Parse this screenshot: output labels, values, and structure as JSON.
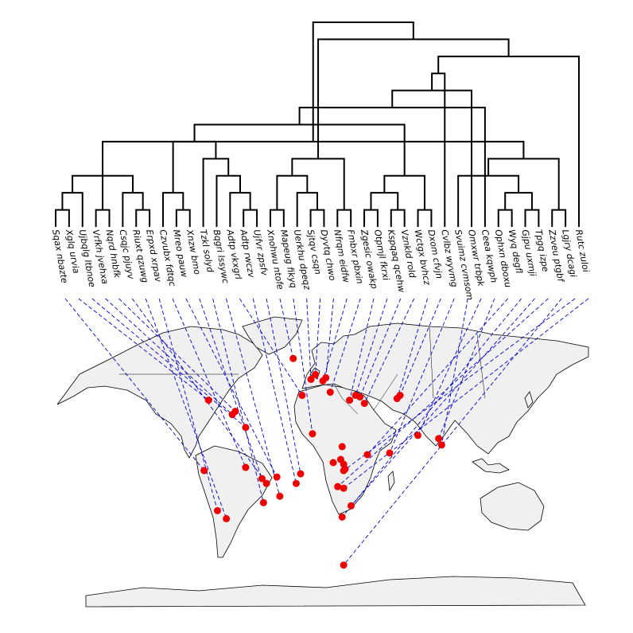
{
  "chart_data": {
    "type": "tanglegram",
    "title": "",
    "xlabel": "",
    "ylabel": "",
    "tips": [
      {
        "label": "Sqax nbazte"
      },
      {
        "label": "Xglq urvia"
      },
      {
        "label": "Ujbqlg ltbnoe"
      },
      {
        "label": "Vrfkh jvehxa"
      },
      {
        "label": "Nqrd hnbfk"
      },
      {
        "label": "Csqjc pjuyv"
      },
      {
        "label": "Riuxt qzuwg"
      },
      {
        "label": "Erpxd xrpav"
      },
      {
        "label": "Czvubx fdtqc"
      },
      {
        "label": "Mreo pauw"
      },
      {
        "label": "Xnzw bmo"
      },
      {
        "label": "Tzkl solyd"
      },
      {
        "label": "Bqgri lssywc"
      },
      {
        "label": "Adtp vkxgrl"
      },
      {
        "label": "Adtp rwczv"
      },
      {
        "label": "Ujfvr zpsfv"
      },
      {
        "label": "Xnohwu ntofe"
      },
      {
        "label": "Mapeug fikyq"
      },
      {
        "label": "Uerkhu dpeqz"
      },
      {
        "label": "Sjtqv csqn"
      },
      {
        "label": "Dyvtq chwo"
      },
      {
        "label": "Nfrqm eidfw"
      },
      {
        "label": "Fmbxr pbxin"
      },
      {
        "label": "Zgesic owakp"
      },
      {
        "label": "Otpmjl fkrxi"
      },
      {
        "label": "Kspqaq qcehw"
      },
      {
        "label": "Vznkld rold"
      },
      {
        "label": "Wctgx bvhcz"
      },
      {
        "label": "Dxom cfvjn"
      },
      {
        "label": "Cvlbz wyvmg"
      },
      {
        "label": "Svuimz cvmsom"
      },
      {
        "label": "Omxwr trbpk"
      },
      {
        "label": "Ceea kqwph"
      },
      {
        "label": "Ophxn dboxu"
      },
      {
        "label": "Wyq degfl"
      },
      {
        "label": "Gjpu uxmji"
      },
      {
        "label": "Tpgq izpe"
      },
      {
        "label": "Zzveu ptgbf"
      },
      {
        "label": "Lgjry dcagi"
      },
      {
        "label": "Rutc zuloi"
      }
    ],
    "points": [
      {
        "lon": -77,
        "lat": 39
      },
      {
        "lon": -38,
        "lat": -13
      },
      {
        "lon": -61,
        "lat": 30
      },
      {
        "lon": -59,
        "lat": 32
      },
      {
        "lon": -80,
        "lat": -5
      },
      {
        "lon": -52,
        "lat": 22
      },
      {
        "lon": -52,
        "lat": -3
      },
      {
        "lon": -65,
        "lat": -35
      },
      {
        "lon": -71,
        "lat": -30
      },
      {
        "lon": -31,
        "lat": -9
      },
      {
        "lon": -41,
        "lat": -10
      },
      {
        "lon": -40,
        "lat": -25
      },
      {
        "lon": -29,
        "lat": -21
      },
      {
        "lon": -20,
        "lat": 65
      },
      {
        "lon": -18,
        "lat": -13
      },
      {
        "lon": -15,
        "lat": -7
      },
      {
        "lon": -7,
        "lat": 18
      },
      {
        "lon": -14,
        "lat": 42
      },
      {
        "lon": -8,
        "lat": 52
      },
      {
        "lon": -5,
        "lat": 55
      },
      {
        "lon": 2,
        "lat": 53
      },
      {
        "lon": 0,
        "lat": 51
      },
      {
        "lon": 5,
        "lat": 44
      },
      {
        "lon": 7,
        "lat": 0
      },
      {
        "lon": 12,
        "lat": 2
      },
      {
        "lon": 13,
        "lat": 10
      },
      {
        "lon": 14,
        "lat": -5
      },
      {
        "lon": 14,
        "lat": -16
      },
      {
        "lon": 14,
        "lat": -1
      },
      {
        "lon": 15,
        "lat": -4
      },
      {
        "lon": 10,
        "lat": -15
      },
      {
        "lon": 13,
        "lat": -34
      },
      {
        "lon": 19,
        "lat": -27
      },
      {
        "lon": 18,
        "lat": 39
      },
      {
        "lon": 14,
        "lat": -64
      },
      {
        "lon": 22,
        "lat": 42
      },
      {
        "lon": 25,
        "lat": 41
      },
      {
        "lon": 28,
        "lat": 37
      },
      {
        "lon": 30,
        "lat": 5
      },
      {
        "lon": 50,
        "lat": 40
      },
      {
        "lon": 52,
        "lat": 42
      },
      {
        "lon": 45,
        "lat": 6
      },
      {
        "lon": 64,
        "lat": 17
      },
      {
        "lon": 80,
        "lat": 11
      },
      {
        "lon": 78,
        "lat": 15
      }
    ],
    "links": [
      [
        0,
        4
      ],
      [
        1,
        0
      ],
      [
        2,
        5
      ],
      [
        3,
        2
      ],
      [
        4,
        3
      ],
      [
        5,
        1
      ],
      [
        6,
        7
      ],
      [
        7,
        8
      ],
      [
        8,
        6
      ],
      [
        9,
        9
      ],
      [
        10,
        10
      ],
      [
        11,
        11
      ],
      [
        12,
        12
      ],
      [
        13,
        17
      ],
      [
        14,
        14
      ],
      [
        15,
        15
      ],
      [
        16,
        13
      ],
      [
        17,
        16
      ],
      [
        18,
        18
      ],
      [
        19,
        19
      ],
      [
        20,
        20
      ],
      [
        21,
        21
      ],
      [
        22,
        22
      ],
      [
        23,
        33
      ],
      [
        24,
        35
      ],
      [
        25,
        36
      ],
      [
        26,
        37
      ],
      [
        27,
        39
      ],
      [
        28,
        40
      ],
      [
        29,
        41
      ],
      [
        30,
        43
      ],
      [
        31,
        42
      ],
      [
        32,
        44
      ],
      [
        33,
        38
      ],
      [
        34,
        31
      ],
      [
        35,
        32
      ],
      [
        36,
        30
      ],
      [
        37,
        34
      ],
      [
        38,
        26
      ],
      [
        39,
        27
      ]
    ],
    "tree_merges": [
      [
        0,
        1
      ],
      [
        3,
        4
      ],
      [
        2,
        "a"
      ],
      [
        6,
        7
      ],
      [
        5,
        "d"
      ],
      [
        "c",
        "e"
      ],
      [
        "b",
        "f"
      ],
      [
        9,
        10
      ],
      [
        8,
        "h"
      ],
      [
        14,
        15
      ],
      [
        13,
        "j"
      ],
      [
        12,
        "k"
      ],
      [
        11,
        "l"
      ],
      [
        "i",
        "m"
      ],
      [
        16,
        17
      ],
      [
        19,
        20
      ],
      [
        18,
        "p"
      ],
      [
        "o",
        "q"
      ],
      [
        21,
        22
      ],
      [
        23,
        24
      ],
      [
        25,
        26
      ],
      [
        27,
        28
      ],
      [
        "t",
        "u"
      ],
      [
        "r",
        "s"
      ],
      [
        "w",
        "v"
      ],
      [
        "n",
        "y"
      ],
      [
        33,
        34
      ],
      [
        35,
        36
      ],
      [
        32,
        "z1"
      ],
      [
        "z2",
        "z3"
      ],
      [
        31,
        "z4"
      ],
      [
        30,
        "z5"
      ],
      [
        29,
        "z6"
      ],
      [
        37,
        38
      ],
      [
        "z8",
        39
      ],
      [
        "z7",
        "z9"
      ],
      [
        "x",
        "z10"
      ],
      [
        "g",
        "z11"
      ],
      [
        "z12",
        "z13"
      ]
    ],
    "grid": false,
    "legend": ""
  }
}
